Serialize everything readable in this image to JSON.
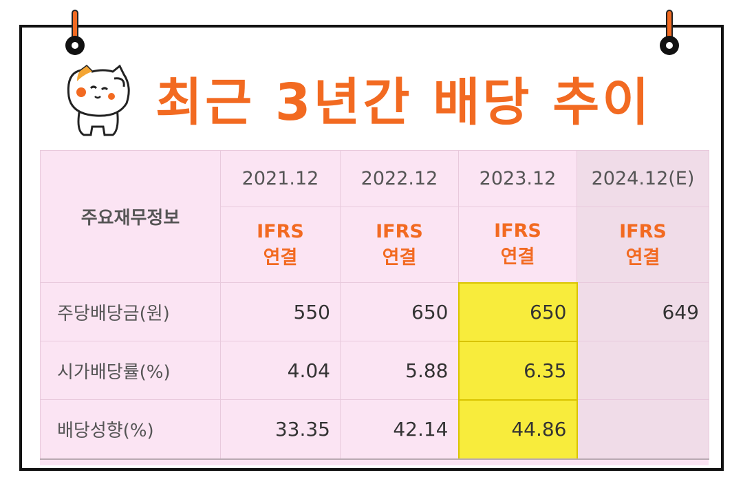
{
  "title": "최근 3년간 배당 추이",
  "table": {
    "corner_label": "주요재무정보",
    "years": [
      "2021.12",
      "2022.12",
      "2023.12",
      "2024.12(E)"
    ],
    "ifrs_line1": [
      "IFRS",
      "IFRS",
      "IFRS",
      "IFRS"
    ],
    "ifrs_line2": [
      "연결",
      "연결",
      "연결",
      "연결"
    ],
    "rows": [
      {
        "label": "주당배당금(원)",
        "values": [
          "550",
          "650",
          "650",
          "649"
        ]
      },
      {
        "label": "시가배당률(%)",
        "values": [
          "4.04",
          "5.88",
          "6.35",
          ""
        ]
      },
      {
        "label": "배당성향(%)",
        "values": [
          "33.35",
          "42.14",
          "44.86",
          ""
        ]
      }
    ],
    "highlight_column": "2023.12",
    "highlight_color": "#f8ec3c",
    "accent_color": "#f26a21",
    "table_bg_color": "#fbe4f3"
  },
  "icons": {
    "mascot": "cat-mascot-icon",
    "pins": "binder-pin-icon"
  }
}
